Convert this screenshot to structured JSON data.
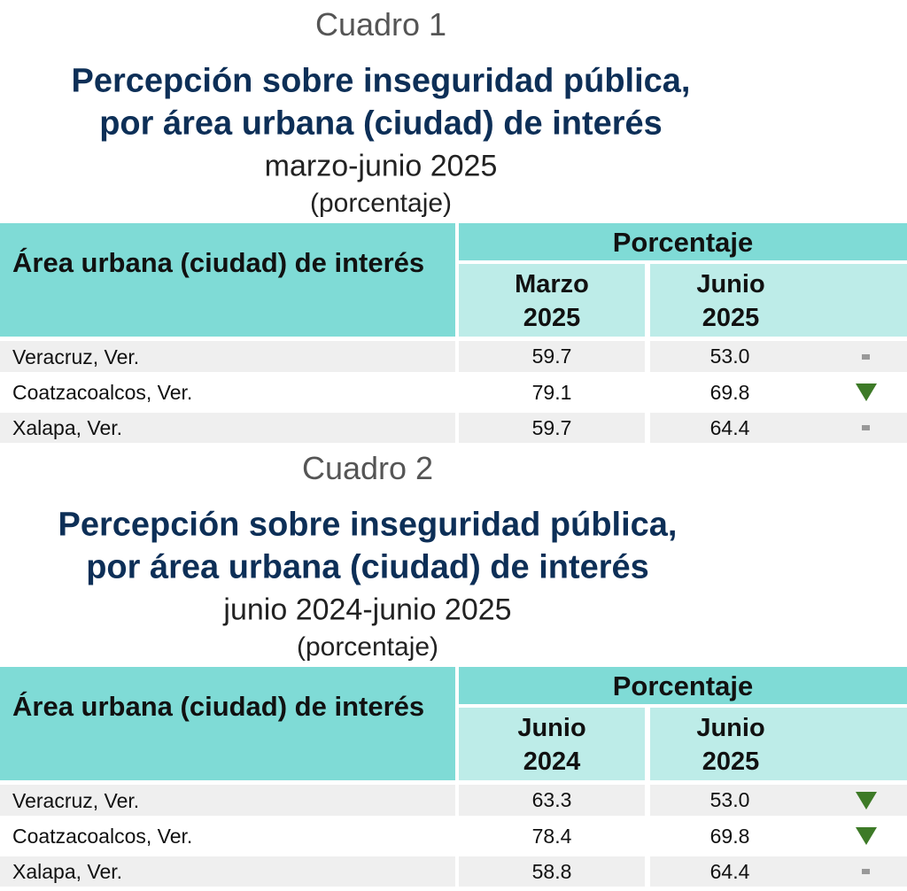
{
  "tables": [
    {
      "cuadro": "Cuadro 1",
      "title_line1": "Percepción sobre inseguridad pública,",
      "title_line2": "por área urbana (ciudad) de interés",
      "period": "marzo-junio 2025",
      "unit": "(porcentaje)",
      "header_area": "Área urbana (ciudad) de interés",
      "header_group": "Porcentaje",
      "col1": [
        "Marzo",
        "2025"
      ],
      "col2": [
        "Junio",
        "2025"
      ],
      "rows": [
        {
          "city": "Veracruz, Ver.",
          "v1": "59.7",
          "v2": "53.0",
          "indicator": "no-change"
        },
        {
          "city": "Coatzacoalcos, Ver.",
          "v1": "79.1",
          "v2": "69.8",
          "indicator": "decrease"
        },
        {
          "city": "Xalapa, Ver.",
          "v1": "59.7",
          "v2": "64.4",
          "indicator": "no-change"
        }
      ]
    },
    {
      "cuadro": "Cuadro 2",
      "title_line1": "Percepción sobre inseguridad pública,",
      "title_line2": "por área urbana (ciudad) de interés",
      "period": "junio 2024-junio 2025",
      "unit": "(porcentaje)",
      "header_area": "Área urbana (ciudad) de interés",
      "header_group": "Porcentaje",
      "col1": [
        "Junio",
        "2024"
      ],
      "col2": [
        "Junio",
        "2025"
      ],
      "rows": [
        {
          "city": "Veracruz, Ver.",
          "v1": "63.3",
          "v2": "53.0",
          "indicator": "decrease"
        },
        {
          "city": "Coatzacoalcos, Ver.",
          "v1": "78.4",
          "v2": "69.8",
          "indicator": "decrease"
        },
        {
          "city": "Xalapa, Ver.",
          "v1": "58.8",
          "v2": "64.4",
          "indicator": "no-change"
        }
      ]
    }
  ],
  "colors": {
    "title": "#0d2f57",
    "header_dark": "#7fdbd6",
    "header_light": "#bdece8",
    "row_gray": "#efefef",
    "decrease": "#3d7a27",
    "no_change": "#999999"
  }
}
